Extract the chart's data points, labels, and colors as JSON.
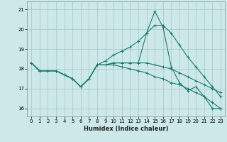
{
  "xlabel": "Humidex (Indice chaleur)",
  "bg_color": "#cce8e8",
  "grid_color": "#aacccc",
  "line_color": "#1a7a6e",
  "xlim": [
    -0.5,
    23.5
  ],
  "ylim": [
    15.6,
    21.4
  ],
  "xticks": [
    0,
    1,
    2,
    3,
    4,
    5,
    6,
    7,
    8,
    9,
    10,
    11,
    12,
    13,
    14,
    15,
    16,
    17,
    18,
    19,
    20,
    21,
    22,
    23
  ],
  "yticks": [
    16,
    17,
    18,
    19,
    20,
    21
  ],
  "series": [
    [
      18.3,
      17.9,
      17.9,
      17.9,
      17.7,
      17.5,
      17.1,
      17.5,
      18.2,
      18.2,
      18.3,
      18.3,
      18.3,
      18.3,
      19.8,
      20.9,
      20.1,
      18.1,
      17.3,
      16.9,
      17.1,
      16.6,
      16.0,
      16.0
    ],
    [
      18.3,
      17.9,
      17.9,
      17.9,
      17.7,
      17.5,
      17.1,
      17.5,
      18.2,
      18.4,
      18.7,
      18.9,
      19.1,
      19.4,
      19.8,
      20.2,
      20.2,
      19.8,
      19.2,
      18.6,
      18.1,
      17.6,
      17.1,
      16.6
    ],
    [
      18.3,
      17.9,
      17.9,
      17.9,
      17.7,
      17.5,
      17.1,
      17.5,
      18.2,
      18.2,
      18.3,
      18.3,
      18.3,
      18.3,
      18.3,
      18.2,
      18.1,
      18.0,
      17.8,
      17.6,
      17.4,
      17.2,
      17.0,
      16.8
    ],
    [
      18.3,
      17.9,
      17.9,
      17.9,
      17.7,
      17.5,
      17.1,
      17.5,
      18.2,
      18.2,
      18.2,
      18.1,
      18.0,
      17.9,
      17.8,
      17.6,
      17.5,
      17.3,
      17.2,
      17.0,
      16.8,
      16.6,
      16.3,
      16.0
    ]
  ]
}
